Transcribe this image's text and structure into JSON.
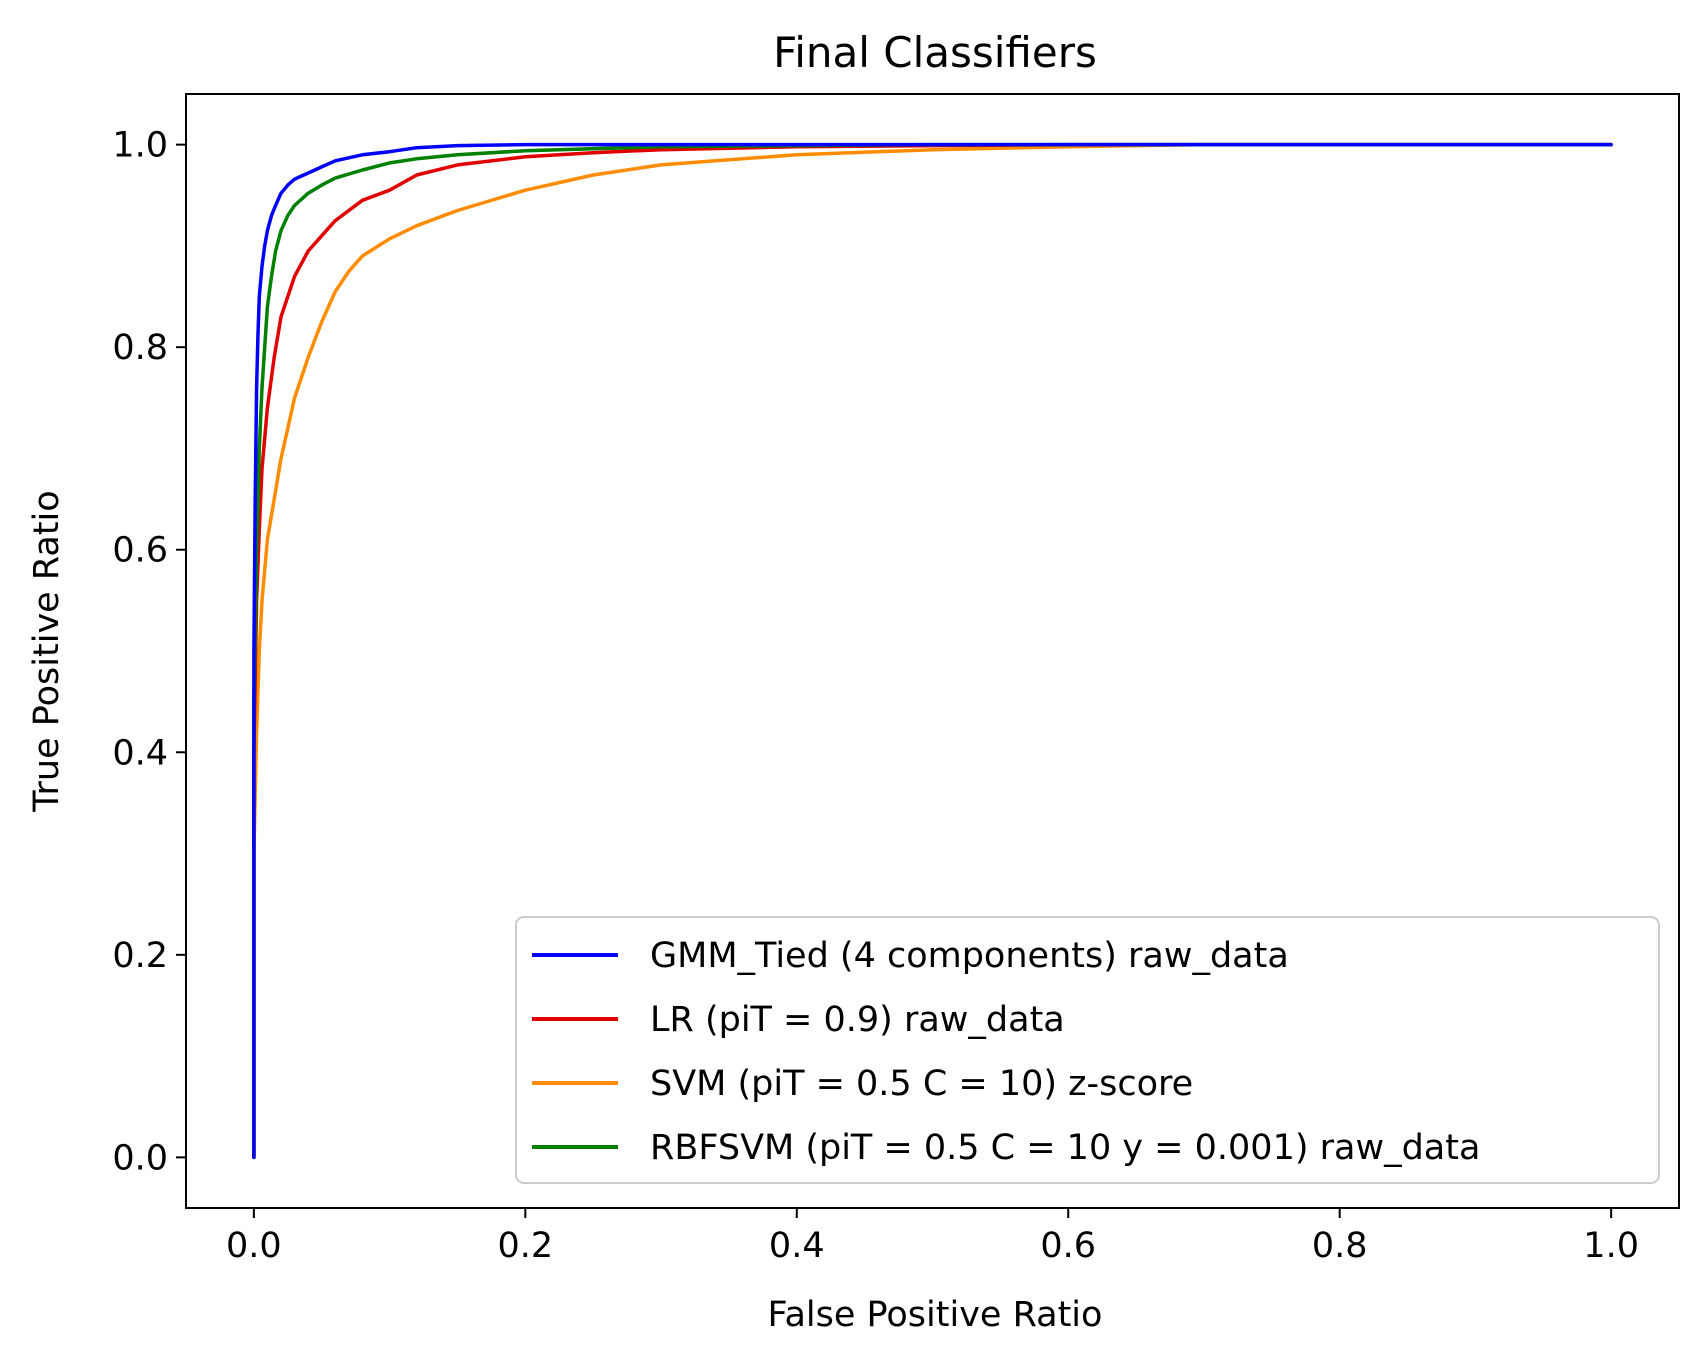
{
  "chart_data": {
    "type": "line",
    "title": "Final Classifiers",
    "xlabel": "False Positive Ratio",
    "ylabel": "True Positive Ratio",
    "xlim": [
      -0.05,
      1.05
    ],
    "ylim": [
      -0.05,
      1.05
    ],
    "xticks": [
      "0.0",
      "0.2",
      "0.4",
      "0.6",
      "0.8",
      "1.0"
    ],
    "yticks": [
      "0.0",
      "0.2",
      "0.4",
      "0.6",
      "0.8",
      "1.0"
    ],
    "grid": false,
    "legend_position": "lower right",
    "series": [
      {
        "name": "GMM_Tied (4 components) raw_data",
        "color": "#0000ff",
        "x": [
          0.0,
          0.0,
          0.001,
          0.002,
          0.003,
          0.004,
          0.006,
          0.008,
          0.01,
          0.013,
          0.016,
          0.02,
          0.025,
          0.03,
          0.04,
          0.05,
          0.06,
          0.08,
          0.1,
          0.12,
          0.15,
          0.2,
          0.3,
          0.5,
          0.7,
          1.0
        ],
        "y": [
          0.0,
          0.5,
          0.65,
          0.76,
          0.81,
          0.85,
          0.88,
          0.9,
          0.915,
          0.93,
          0.94,
          0.952,
          0.96,
          0.966,
          0.972,
          0.978,
          0.984,
          0.99,
          0.993,
          0.997,
          0.999,
          1.0,
          1.0,
          1.0,
          1.0,
          1.0
        ]
      },
      {
        "name": "LR (piT = 0.9) raw_data",
        "color": "#e00000",
        "x": [
          0.0,
          0.0,
          0.002,
          0.004,
          0.006,
          0.01,
          0.015,
          0.02,
          0.03,
          0.04,
          0.05,
          0.06,
          0.08,
          0.1,
          0.12,
          0.15,
          0.2,
          0.25,
          0.3,
          0.4,
          0.5,
          0.6,
          1.0
        ],
        "y": [
          0.0,
          0.4,
          0.55,
          0.62,
          0.68,
          0.74,
          0.79,
          0.83,
          0.87,
          0.895,
          0.91,
          0.925,
          0.945,
          0.955,
          0.97,
          0.98,
          0.988,
          0.992,
          0.995,
          0.998,
          0.999,
          1.0,
          1.0
        ]
      },
      {
        "name": "SVM (piT = 0.5 C = 10) z-score",
        "color": "#ff8c00",
        "x": [
          0.0,
          0.0,
          0.002,
          0.004,
          0.006,
          0.008,
          0.01,
          0.015,
          0.02,
          0.025,
          0.03,
          0.035,
          0.04,
          0.05,
          0.06,
          0.07,
          0.08,
          0.1,
          0.12,
          0.15,
          0.2,
          0.25,
          0.3,
          0.35,
          0.4,
          0.5,
          0.6,
          0.7,
          1.0
        ],
        "y": [
          0.0,
          0.3,
          0.42,
          0.5,
          0.55,
          0.58,
          0.61,
          0.65,
          0.69,
          0.72,
          0.75,
          0.77,
          0.79,
          0.825,
          0.855,
          0.875,
          0.89,
          0.907,
          0.92,
          0.935,
          0.955,
          0.97,
          0.98,
          0.985,
          0.99,
          0.995,
          0.998,
          1.0,
          1.0
        ]
      },
      {
        "name": "RBFSVM (piT = 0.5 C = 10 y = 0.001) raw_data",
        "color": "#008000",
        "x": [
          0.0,
          0.0,
          0.002,
          0.004,
          0.006,
          0.008,
          0.01,
          0.013,
          0.016,
          0.02,
          0.025,
          0.03,
          0.04,
          0.05,
          0.06,
          0.08,
          0.1,
          0.12,
          0.15,
          0.2,
          0.3,
          0.5,
          1.0
        ],
        "y": [
          0.0,
          0.45,
          0.6,
          0.7,
          0.76,
          0.8,
          0.84,
          0.87,
          0.895,
          0.915,
          0.93,
          0.94,
          0.952,
          0.96,
          0.967,
          0.975,
          0.982,
          0.986,
          0.99,
          0.994,
          0.998,
          1.0,
          1.0
        ]
      }
    ]
  }
}
